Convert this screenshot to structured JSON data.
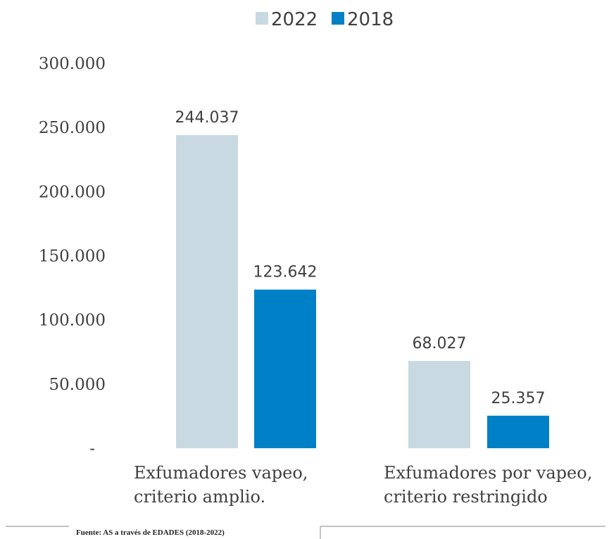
{
  "chart_data": {
    "type": "bar",
    "categories": [
      [
        "Exfumadores  vapeo,",
        "criterio amplio."
      ],
      [
        "Exfumadores por vapeo,",
        "criterio restringido"
      ]
    ],
    "series": [
      {
        "name": "2022",
        "values": [
          244037,
          68027
        ],
        "labels": [
          "244.037",
          "68.027"
        ],
        "color": "#c8d9e2"
      },
      {
        "name": "2018",
        "values": [
          123642,
          25357
        ],
        "labels": [
          "123.642",
          "25.357"
        ],
        "color": "#0080c6"
      }
    ],
    "ylim": [
      0,
      300000
    ],
    "yticks": [
      0,
      50000,
      100000,
      150000,
      200000,
      250000,
      300000
    ],
    "ytick_labels": [
      "-",
      "50.000",
      "100.000",
      "150.000",
      "200.000",
      "250.000",
      "300.000"
    ],
    "legend_position": "top-right",
    "grid": false,
    "source": "Fuente: AS a través de EDADES (2018-2022)"
  }
}
